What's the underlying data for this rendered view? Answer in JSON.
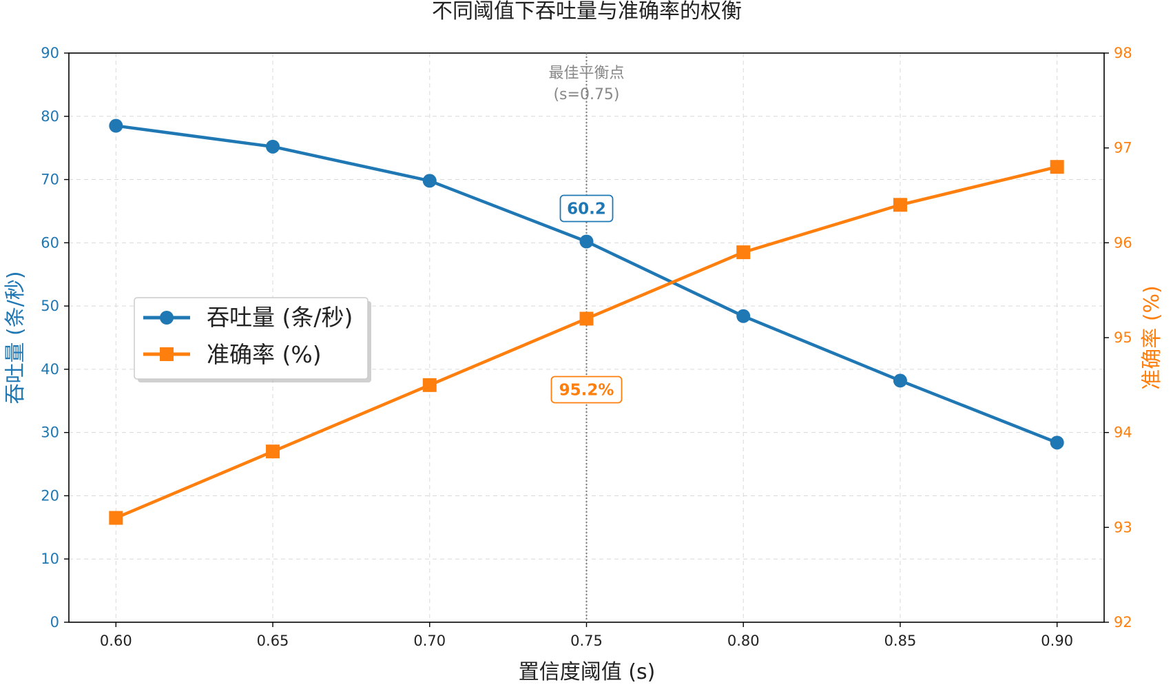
{
  "chart_data": {
    "type": "line",
    "title": "不同阈值下吞吐量与准确率的权衡",
    "xlabel": "置信度阈值 (s)",
    "x": [
      0.6,
      0.65,
      0.7,
      0.75,
      0.8,
      0.85,
      0.9
    ],
    "x_tick_labels": [
      "0.60",
      "0.65",
      "0.70",
      "0.75",
      "0.80",
      "0.85",
      "0.90"
    ],
    "xlim": [
      0.585,
      0.915
    ],
    "grid": true,
    "legend_position": "center-left",
    "series": [
      {
        "name": "吞吐量 (条/秒)",
        "axis": "left",
        "marker": "circle",
        "color": "#1f77b4",
        "values": [
          78.5,
          75.2,
          69.8,
          60.2,
          48.4,
          38.2,
          28.4
        ]
      },
      {
        "name": "准确率 (%)",
        "axis": "right",
        "marker": "square",
        "color": "#ff7f0e",
        "values": [
          93.1,
          93.8,
          94.5,
          95.2,
          95.9,
          96.4,
          96.8
        ]
      }
    ],
    "y_left": {
      "label": "吞吐量 (条/秒)",
      "ylim": [
        0,
        90
      ],
      "ticks": [
        0,
        10,
        20,
        30,
        40,
        50,
        60,
        70,
        80,
        90
      ],
      "tick_labels": [
        "0",
        "10",
        "20",
        "30",
        "40",
        "50",
        "60",
        "70",
        "80",
        "90"
      ],
      "color": "#1f77b4"
    },
    "y_right": {
      "label": "准确率 (%)",
      "ylim": [
        92,
        98
      ],
      "ticks": [
        92,
        93,
        94,
        95,
        96,
        97,
        98
      ],
      "tick_labels": [
        "92",
        "93",
        "94",
        "95",
        "96",
        "97",
        "98"
      ],
      "color": "#ff7f0e"
    },
    "annotations": {
      "best_point_x": 0.75,
      "best_point_label_line1": "最佳平衡点",
      "best_point_label_line2": "(s=0.75)",
      "throughput_label": "60.2",
      "accuracy_label": "95.2%"
    }
  }
}
